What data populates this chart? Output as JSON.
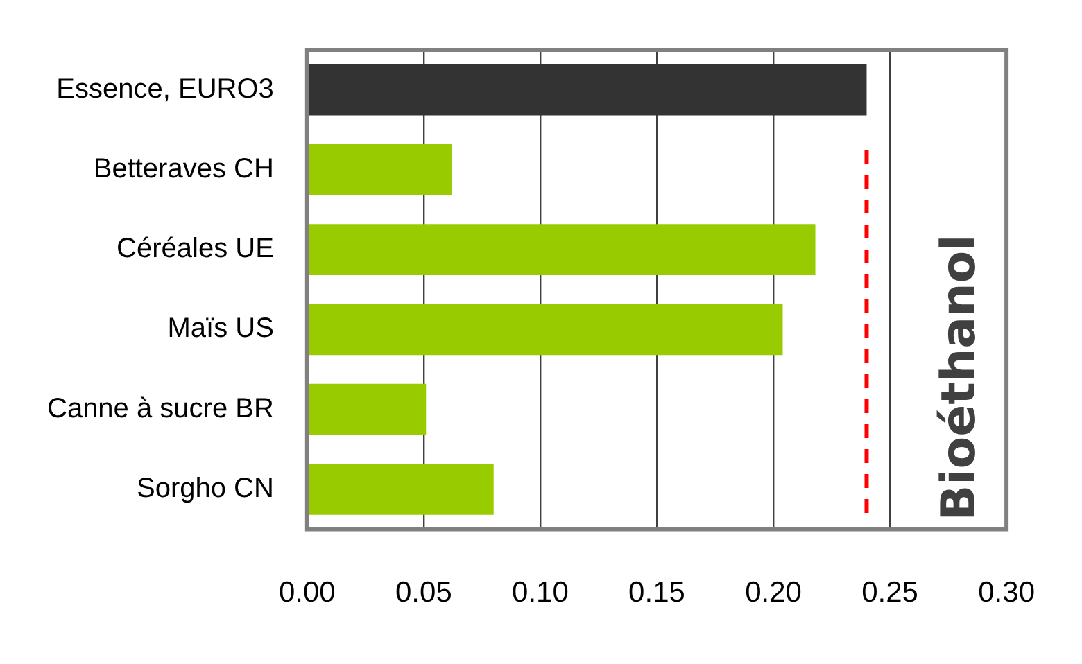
{
  "chart_data": {
    "type": "bar",
    "orientation": "horizontal",
    "categories": [
      "Essence, EURO3",
      "Betteraves CH",
      "Céréales UE",
      "Maïs US",
      "Canne à sucre BR",
      "Sorgho CN"
    ],
    "values": [
      0.24,
      0.062,
      0.218,
      0.204,
      0.051,
      0.08
    ],
    "colors": [
      "#333333",
      "#99cc00",
      "#99cc00",
      "#99cc00",
      "#99cc00",
      "#99cc00"
    ],
    "xlim": [
      0,
      0.3
    ],
    "xticks": [
      {
        "value": 0,
        "label": "0.00"
      },
      {
        "value": 0.05,
        "label": "0.05"
      },
      {
        "value": 0.1,
        "label": "0.10"
      },
      {
        "value": 0.15,
        "label": "0.15"
      },
      {
        "value": 0.2,
        "label": "0.20"
      },
      {
        "value": 0.25,
        "label": "0.25"
      },
      {
        "value": 0.3,
        "label": "0.30"
      }
    ],
    "ref_lines": [
      {
        "axis": "x",
        "value": 0.24,
        "color": "#ff0000",
        "line_style": "dashed"
      }
    ],
    "annotations": [
      "Bioéthanol"
    ],
    "grid": "x",
    "legend": false
  }
}
